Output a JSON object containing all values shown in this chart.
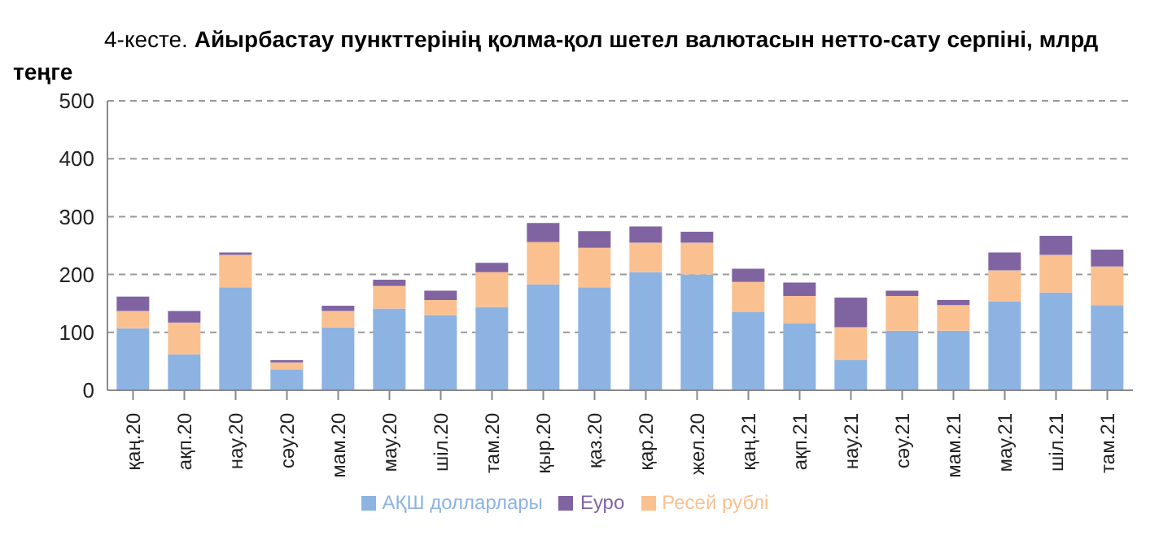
{
  "chart_data": {
    "type": "bar",
    "title": "4-кесте.",
    "subtitle": "Айырбастау пункттерінің қолма-қол шетел валютасын нетто-сату серпіні, млрд теңге",
    "categories": [
      "қаң.20",
      "ақп.20",
      "нау.20",
      "сәу.20",
      "мам.20",
      "мау.20",
      "шіл.20",
      "там.20",
      "қыр.20",
      "қаз.20",
      "қар.20",
      "жел.20",
      "қаң.21",
      "ақп.21",
      "нау.21",
      "сәу.21",
      "мам.21",
      "мау.21",
      "шіл.21",
      "там.21"
    ],
    "series": [
      {
        "name": "АҚШ долларлары",
        "color": "#8db3e2",
        "values": [
          107,
          62,
          178,
          36,
          109,
          141,
          130,
          144,
          183,
          178,
          204,
          200,
          135,
          115,
          52,
          103,
          103,
          153,
          169,
          147
        ]
      },
      {
        "name": "Ресей рублі",
        "color": "#fac090",
        "values": [
          30,
          55,
          56,
          12,
          28,
          39,
          26,
          60,
          73,
          68,
          51,
          55,
          52,
          48,
          57,
          60,
          44,
          54,
          65,
          67
        ]
      },
      {
        "name": "Еуро",
        "color": "#8064a2",
        "values": [
          25,
          20,
          4,
          4,
          9,
          11,
          16,
          16,
          33,
          29,
          28,
          19,
          23,
          23,
          51,
          9,
          9,
          31,
          33,
          29
        ]
      }
    ],
    "stacked": true,
    "ylim": [
      0,
      500
    ],
    "yticks": [
      0,
      100,
      200,
      300,
      400,
      500
    ],
    "grid": "y",
    "legend": "bottom"
  }
}
